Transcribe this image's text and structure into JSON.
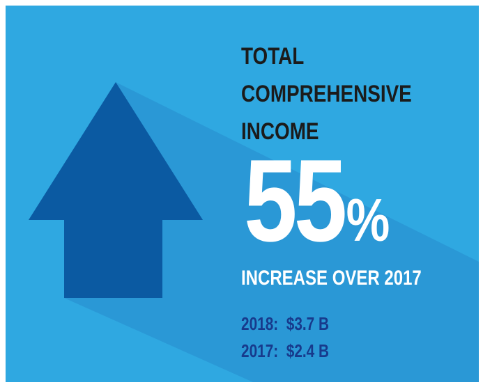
{
  "colors": {
    "background": "#2fa8e1",
    "shadow": "#2a98d6",
    "arrow": "#0b5aa2",
    "title_text": "#1b1b1b",
    "highlight_text": "#ffffff",
    "stats_text": "#173a8c"
  },
  "icon": "up-arrow-icon",
  "title_lines": [
    "TOTAL",
    "COMPREHENSIVE",
    "INCOME"
  ],
  "headline": {
    "value": "55",
    "unit": "%"
  },
  "subtitle": "INCREASE OVER 2017",
  "stats": [
    {
      "label": "2018:",
      "value": "$3.7 B"
    },
    {
      "label": "2017:",
      "value": "$2.4 B"
    }
  ]
}
